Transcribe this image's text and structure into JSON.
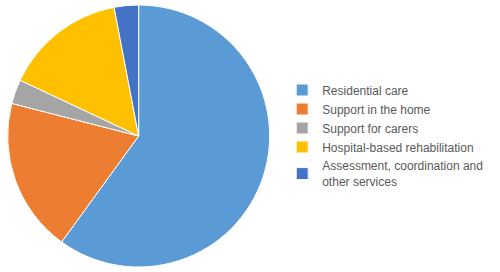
{
  "chart_data": {
    "type": "pie",
    "categories": [
      "Residential care",
      "Support in the home",
      "Support for carers",
      "Hospital-based rehabilitation",
      "Assessment, coordination and other services"
    ],
    "values": [
      60,
      19,
      3,
      15,
      3
    ],
    "colors": [
      "#5b9bd5",
      "#ed7d31",
      "#a5a5a5",
      "#ffc000",
      "#4472c4"
    ],
    "legend": "right"
  }
}
